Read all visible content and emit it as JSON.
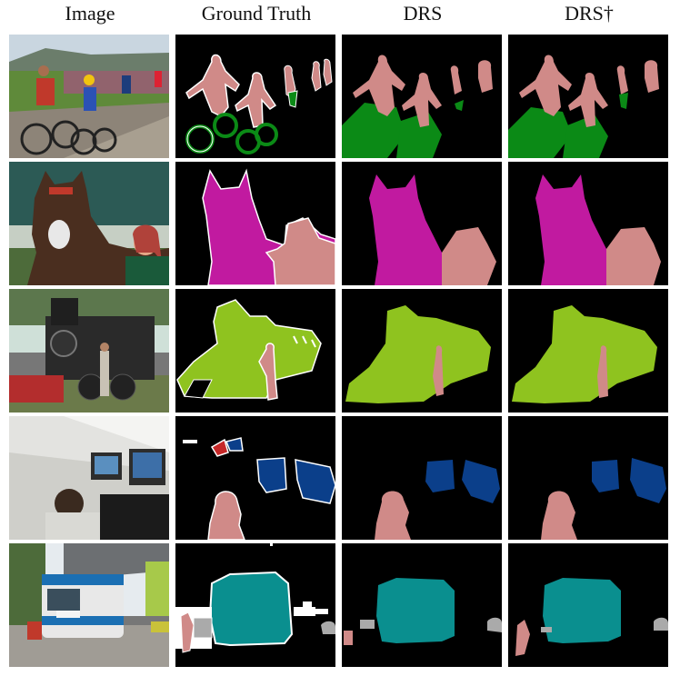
{
  "headers": [
    "Image",
    "Ground Truth",
    "DRS",
    "DRS†"
  ],
  "rows": [
    {
      "name": "cyclists"
    },
    {
      "name": "horse-and-rider"
    },
    {
      "name": "steam-train"
    },
    {
      "name": "office-monitors"
    },
    {
      "name": "bus"
    }
  ],
  "colors": {
    "person": "#d08a88",
    "bicycle": "#0b8a16",
    "horse": "#c11aa0",
    "train": "#8fc31f",
    "tv_monitor": "#0b3f8a",
    "bus": "#0a8f8f",
    "car": "#aaaaaa",
    "chair": "#c62828",
    "background": "#000000",
    "boundary": "#ffffff"
  }
}
